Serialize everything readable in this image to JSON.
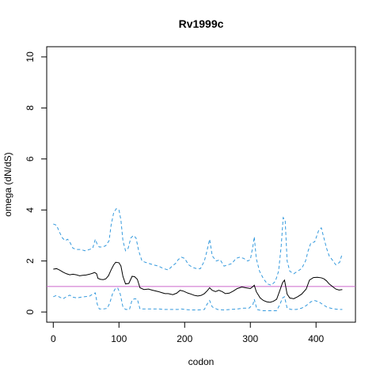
{
  "chart_data": {
    "type": "line",
    "title": "Rv1999c",
    "xlabel": "codon",
    "ylabel": "omega (dN/dS)",
    "xlim": [
      -10,
      460
    ],
    "ylim": [
      -0.4,
      10.4
    ],
    "x_ticks": [
      0,
      100,
      200,
      300,
      400
    ],
    "y_ticks": [
      0,
      2,
      4,
      6,
      8,
      10
    ],
    "reference_line": {
      "y": 1,
      "color": "#cc66cc"
    },
    "series": [
      {
        "role": "estimate",
        "color": "#000000",
        "dash": "solid",
        "points": [
          [
            0,
            1.68
          ],
          [
            5,
            1.7
          ],
          [
            10,
            1.64
          ],
          [
            15,
            1.56
          ],
          [
            20,
            1.5
          ],
          [
            25,
            1.46
          ],
          [
            30,
            1.48
          ],
          [
            35,
            1.46
          ],
          [
            40,
            1.42
          ],
          [
            45,
            1.44
          ],
          [
            50,
            1.45
          ],
          [
            55,
            1.48
          ],
          [
            60,
            1.52
          ],
          [
            63,
            1.55
          ],
          [
            66,
            1.5
          ],
          [
            68,
            1.32
          ],
          [
            72,
            1.28
          ],
          [
            76,
            1.27
          ],
          [
            80,
            1.3
          ],
          [
            84,
            1.42
          ],
          [
            88,
            1.65
          ],
          [
            92,
            1.85
          ],
          [
            95,
            1.95
          ],
          [
            100,
            1.93
          ],
          [
            103,
            1.8
          ],
          [
            106,
            1.4
          ],
          [
            110,
            1.1
          ],
          [
            115,
            1.12
          ],
          [
            120,
            1.4
          ],
          [
            124,
            1.38
          ],
          [
            128,
            1.28
          ],
          [
            132,
            0.95
          ],
          [
            138,
            0.88
          ],
          [
            145,
            0.9
          ],
          [
            150,
            0.86
          ],
          [
            160,
            0.8
          ],
          [
            165,
            0.76
          ],
          [
            170,
            0.72
          ],
          [
            175,
            0.72
          ],
          [
            182,
            0.68
          ],
          [
            188,
            0.74
          ],
          [
            193,
            0.85
          ],
          [
            198,
            0.82
          ],
          [
            205,
            0.74
          ],
          [
            210,
            0.7
          ],
          [
            215,
            0.65
          ],
          [
            220,
            0.63
          ],
          [
            225,
            0.65
          ],
          [
            230,
            0.72
          ],
          [
            235,
            0.85
          ],
          [
            238,
            0.95
          ],
          [
            242,
            0.85
          ],
          [
            247,
            0.8
          ],
          [
            252,
            0.85
          ],
          [
            257,
            0.8
          ],
          [
            262,
            0.72
          ],
          [
            268,
            0.74
          ],
          [
            274,
            0.82
          ],
          [
            280,
            0.92
          ],
          [
            287,
            0.98
          ],
          [
            293,
            0.95
          ],
          [
            300,
            0.92
          ],
          [
            304,
            1.0
          ],
          [
            306,
            1.05
          ],
          [
            309,
            0.8
          ],
          [
            315,
            0.55
          ],
          [
            320,
            0.45
          ],
          [
            325,
            0.4
          ],
          [
            330,
            0.38
          ],
          [
            335,
            0.42
          ],
          [
            340,
            0.5
          ],
          [
            345,
            0.85
          ],
          [
            349,
            1.15
          ],
          [
            352,
            1.25
          ],
          [
            356,
            0.7
          ],
          [
            360,
            0.55
          ],
          [
            366,
            0.52
          ],
          [
            372,
            0.6
          ],
          [
            378,
            0.7
          ],
          [
            385,
            0.9
          ],
          [
            390,
            1.25
          ],
          [
            396,
            1.35
          ],
          [
            402,
            1.36
          ],
          [
            408,
            1.34
          ],
          [
            412,
            1.3
          ],
          [
            416,
            1.22
          ],
          [
            420,
            1.1
          ],
          [
            425,
            1.0
          ],
          [
            430,
            0.9
          ],
          [
            435,
            0.86
          ],
          [
            440,
            0.88
          ]
        ]
      },
      {
        "role": "upper_bound",
        "color": "#3399dd",
        "dash": "dashed",
        "points": [
          [
            0,
            3.45
          ],
          [
            5,
            3.4
          ],
          [
            10,
            3.1
          ],
          [
            14,
            2.9
          ],
          [
            18,
            2.8
          ],
          [
            22,
            2.85
          ],
          [
            26,
            2.7
          ],
          [
            30,
            2.5
          ],
          [
            36,
            2.45
          ],
          [
            42,
            2.45
          ],
          [
            48,
            2.4
          ],
          [
            55,
            2.45
          ],
          [
            60,
            2.5
          ],
          [
            64,
            2.85
          ],
          [
            67,
            2.65
          ],
          [
            70,
            2.55
          ],
          [
            75,
            2.55
          ],
          [
            80,
            2.6
          ],
          [
            85,
            2.8
          ],
          [
            88,
            3.4
          ],
          [
            92,
            3.9
          ],
          [
            96,
            4.05
          ],
          [
            100,
            4.0
          ],
          [
            103,
            3.6
          ],
          [
            106,
            2.8
          ],
          [
            110,
            2.4
          ],
          [
            114,
            2.5
          ],
          [
            118,
            2.9
          ],
          [
            122,
            3.0
          ],
          [
            126,
            2.9
          ],
          [
            130,
            2.4
          ],
          [
            135,
            2.0
          ],
          [
            140,
            1.95
          ],
          [
            146,
            1.9
          ],
          [
            152,
            1.85
          ],
          [
            160,
            1.8
          ],
          [
            168,
            1.7
          ],
          [
            175,
            1.65
          ],
          [
            181,
            1.8
          ],
          [
            186,
            1.9
          ],
          [
            190,
            2.05
          ],
          [
            195,
            2.15
          ],
          [
            200,
            2.1
          ],
          [
            206,
            1.85
          ],
          [
            212,
            1.75
          ],
          [
            218,
            1.7
          ],
          [
            224,
            1.7
          ],
          [
            230,
            2.0
          ],
          [
            234,
            2.4
          ],
          [
            238,
            2.85
          ],
          [
            242,
            2.2
          ],
          [
            248,
            2.0
          ],
          [
            254,
            2.05
          ],
          [
            260,
            1.8
          ],
          [
            266,
            1.85
          ],
          [
            272,
            1.9
          ],
          [
            278,
            2.1
          ],
          [
            284,
            2.15
          ],
          [
            290,
            2.1
          ],
          [
            296,
            2.0
          ],
          [
            300,
            2.05
          ],
          [
            304,
            2.6
          ],
          [
            306,
            2.95
          ],
          [
            309,
            2.1
          ],
          [
            314,
            1.6
          ],
          [
            320,
            1.3
          ],
          [
            326,
            1.1
          ],
          [
            332,
            1.05
          ],
          [
            338,
            1.2
          ],
          [
            343,
            1.6
          ],
          [
            347,
            2.6
          ],
          [
            350,
            3.7
          ],
          [
            353,
            3.6
          ],
          [
            356,
            2.0
          ],
          [
            360,
            1.6
          ],
          [
            366,
            1.5
          ],
          [
            372,
            1.6
          ],
          [
            378,
            1.7
          ],
          [
            384,
            2.0
          ],
          [
            388,
            2.4
          ],
          [
            392,
            2.7
          ],
          [
            398,
            2.75
          ],
          [
            404,
            3.2
          ],
          [
            408,
            3.3
          ],
          [
            412,
            2.9
          ],
          [
            416,
            2.5
          ],
          [
            420,
            2.2
          ],
          [
            426,
            2.0
          ],
          [
            430,
            1.85
          ],
          [
            436,
            1.95
          ],
          [
            440,
            2.3
          ]
        ]
      },
      {
        "role": "lower_bound",
        "color": "#3399dd",
        "dash": "dashed",
        "points": [
          [
            0,
            0.6
          ],
          [
            5,
            0.65
          ],
          [
            10,
            0.58
          ],
          [
            15,
            0.52
          ],
          [
            20,
            0.6
          ],
          [
            25,
            0.66
          ],
          [
            30,
            0.58
          ],
          [
            36,
            0.55
          ],
          [
            42,
            0.58
          ],
          [
            48,
            0.6
          ],
          [
            55,
            0.62
          ],
          [
            60,
            0.7
          ],
          [
            64,
            0.75
          ],
          [
            67,
            0.3
          ],
          [
            70,
            0.12
          ],
          [
            76,
            0.12
          ],
          [
            82,
            0.14
          ],
          [
            86,
            0.35
          ],
          [
            90,
            0.7
          ],
          [
            94,
            0.9
          ],
          [
            98,
            0.95
          ],
          [
            102,
            0.7
          ],
          [
            106,
            0.2
          ],
          [
            110,
            0.1
          ],
          [
            116,
            0.1
          ],
          [
            120,
            0.48
          ],
          [
            124,
            0.52
          ],
          [
            128,
            0.5
          ],
          [
            132,
            0.12
          ],
          [
            138,
            0.12
          ],
          [
            145,
            0.12
          ],
          [
            152,
            0.12
          ],
          [
            160,
            0.12
          ],
          [
            170,
            0.1
          ],
          [
            180,
            0.1
          ],
          [
            190,
            0.1
          ],
          [
            195,
            0.12
          ],
          [
            200,
            0.1
          ],
          [
            210,
            0.08
          ],
          [
            220,
            0.08
          ],
          [
            230,
            0.1
          ],
          [
            234,
            0.3
          ],
          [
            238,
            0.45
          ],
          [
            242,
            0.2
          ],
          [
            250,
            0.1
          ],
          [
            260,
            0.08
          ],
          [
            270,
            0.1
          ],
          [
            280,
            0.12
          ],
          [
            290,
            0.15
          ],
          [
            298,
            0.15
          ],
          [
            304,
            0.3
          ],
          [
            306,
            0.5
          ],
          [
            310,
            0.1
          ],
          [
            318,
            0.05
          ],
          [
            325,
            0.05
          ],
          [
            332,
            0.05
          ],
          [
            340,
            0.05
          ],
          [
            345,
            0.3
          ],
          [
            349,
            0.55
          ],
          [
            352,
            0.6
          ],
          [
            356,
            0.15
          ],
          [
            362,
            0.1
          ],
          [
            370,
            0.1
          ],
          [
            378,
            0.15
          ],
          [
            385,
            0.25
          ],
          [
            392,
            0.4
          ],
          [
            398,
            0.45
          ],
          [
            404,
            0.4
          ],
          [
            410,
            0.3
          ],
          [
            416,
            0.2
          ],
          [
            422,
            0.15
          ],
          [
            428,
            0.12
          ],
          [
            434,
            0.1
          ],
          [
            440,
            0.1
          ]
        ]
      }
    ]
  }
}
